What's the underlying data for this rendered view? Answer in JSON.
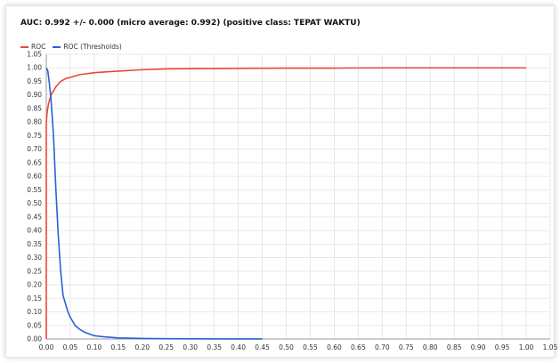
{
  "title": "AUC: 0.992 +/- 0.000 (micro average: 0.992) (positive class: TEPAT WAKTU)",
  "legend": [
    {
      "label": "ROC",
      "color": "#e8483b"
    },
    {
      "label": "ROC (Thresholds)",
      "color": "#2b5fd9"
    }
  ],
  "chart_data": {
    "type": "line",
    "title": "AUC: 0.992 +/- 0.000 (micro average: 0.992) (positive class: TEPAT WAKTU)",
    "xlim": [
      0.0,
      1.05
    ],
    "ylim": [
      0.0,
      1.05
    ],
    "x_ticks": [
      "0.00",
      "0.05",
      "0.10",
      "0.15",
      "0.20",
      "0.25",
      "0.30",
      "0.35",
      "0.40",
      "0.45",
      "0.50",
      "0.55",
      "0.60",
      "0.65",
      "0.70",
      "0.75",
      "0.80",
      "0.85",
      "0.90",
      "0.95",
      "1.00",
      "1.05"
    ],
    "y_ticks": [
      "0.00",
      "0.05",
      "0.10",
      "0.15",
      "0.20",
      "0.25",
      "0.30",
      "0.35",
      "0.40",
      "0.45",
      "0.50",
      "0.55",
      "0.60",
      "0.65",
      "0.70",
      "0.75",
      "0.80",
      "0.85",
      "0.90",
      "0.95",
      "1.00",
      "1.05"
    ],
    "grid": true,
    "legend_position": "top-left",
    "series": [
      {
        "name": "ROC",
        "color": "#e8483b",
        "x": [
          0.0,
          0.0,
          0.002,
          0.005,
          0.01,
          0.02,
          0.03,
          0.04,
          0.05,
          0.07,
          0.1,
          0.15,
          0.2,
          0.25,
          0.3,
          0.4,
          0.5,
          0.6,
          0.7,
          0.8,
          0.9,
          1.0
        ],
        "y": [
          0.0,
          0.8,
          0.84,
          0.87,
          0.9,
          0.93,
          0.95,
          0.96,
          0.965,
          0.975,
          0.982,
          0.988,
          0.993,
          0.996,
          0.997,
          0.998,
          0.999,
          0.999,
          1.0,
          1.0,
          1.0,
          1.0
        ]
      },
      {
        "name": "ROC (Thresholds)",
        "color": "#2b5fd9",
        "x": [
          0.0,
          0.003,
          0.006,
          0.01,
          0.015,
          0.02,
          0.025,
          0.03,
          0.035,
          0.04,
          0.045,
          0.05,
          0.06,
          0.07,
          0.08,
          0.09,
          0.1,
          0.12,
          0.15,
          0.2,
          0.25,
          0.3,
          0.4,
          0.45
        ],
        "y": [
          1.0,
          0.99,
          0.95,
          0.88,
          0.75,
          0.55,
          0.38,
          0.25,
          0.16,
          0.13,
          0.1,
          0.08,
          0.05,
          0.035,
          0.025,
          0.018,
          0.012,
          0.008,
          0.004,
          0.002,
          0.001,
          0.0005,
          0.0002,
          0.0001
        ]
      }
    ]
  }
}
